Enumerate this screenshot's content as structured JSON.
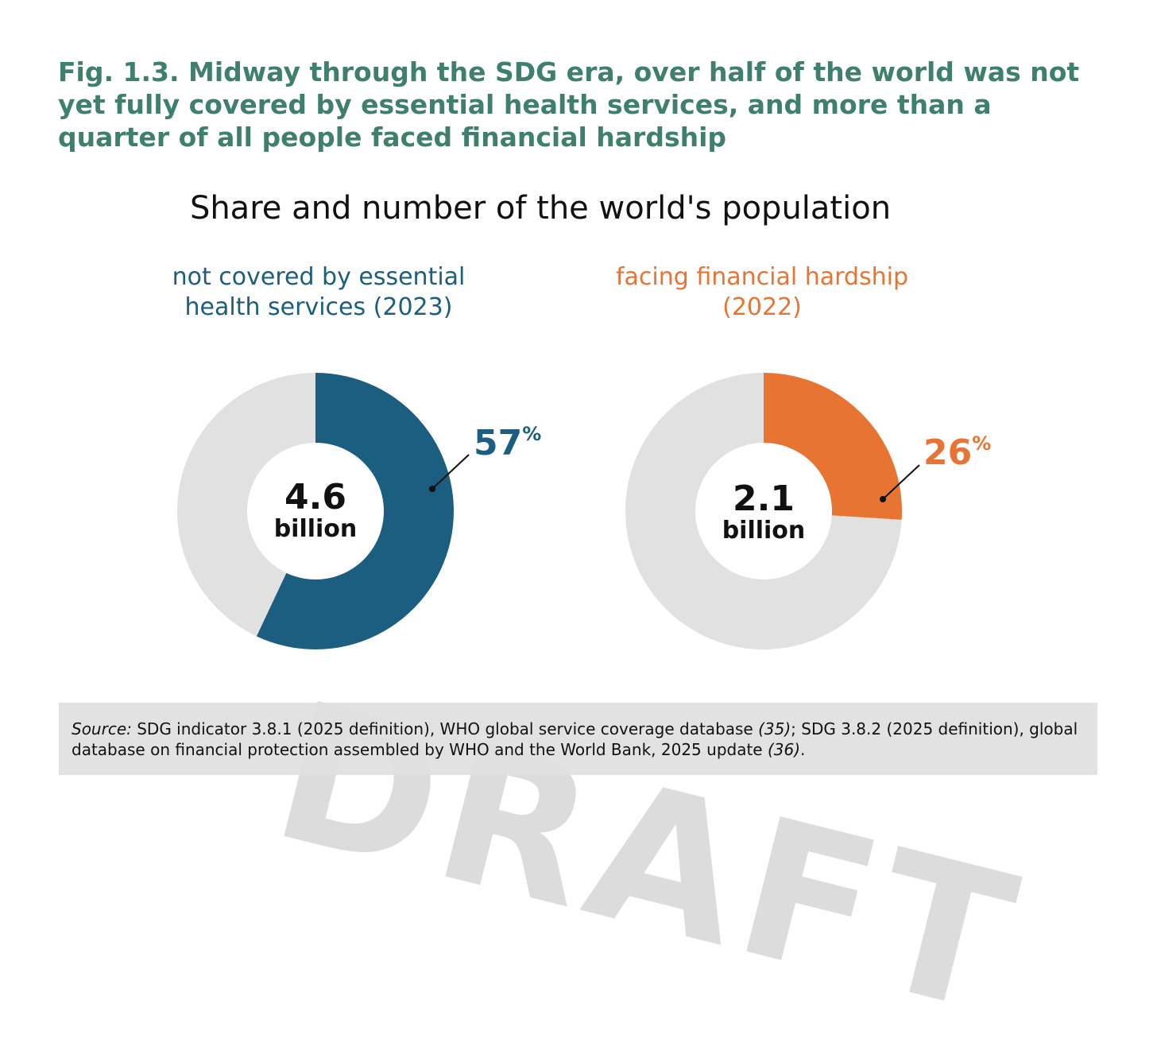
{
  "figure_title": "Fig. 1.3. Midway through the SDG era, over half of the world was not yet fully covered by essential health services, and more than a quarter of all people faced financial hardship",
  "colors": {
    "title": "#3f7f6d",
    "blue": "#1b5e80",
    "orange": "#e87434",
    "track": "#e1e1e2"
  },
  "chart_data": {
    "type": "pie",
    "title": "Share and number of the world's population",
    "charts": [
      {
        "label_line1": "not covered by essential",
        "label_line2": "health services (2023)",
        "percent": 57,
        "percent_label": "57",
        "percent_symbol": "%",
        "center_value": "4.6",
        "center_unit": "billion",
        "color": "#1b5e80"
      },
      {
        "label_line1": "facing financial hardship",
        "label_line2": "(2022)",
        "percent": 26,
        "percent_label": "26",
        "percent_symbol": "%",
        "center_value": "2.1",
        "center_unit": "billion",
        "color": "#e87434"
      }
    ]
  },
  "watermark": "DRAFT",
  "source": {
    "prefix": "Source:",
    "part1": " SDG indicator 3.8.1 (2025 definition), WHO global service coverage database ",
    "ref1": "(35)",
    "part2": "; SDG 3.8.2 (2025 definition), global database on financial protection assembled by WHO and the World Bank, 2025 update ",
    "ref2": "(36)",
    "part3": "."
  }
}
